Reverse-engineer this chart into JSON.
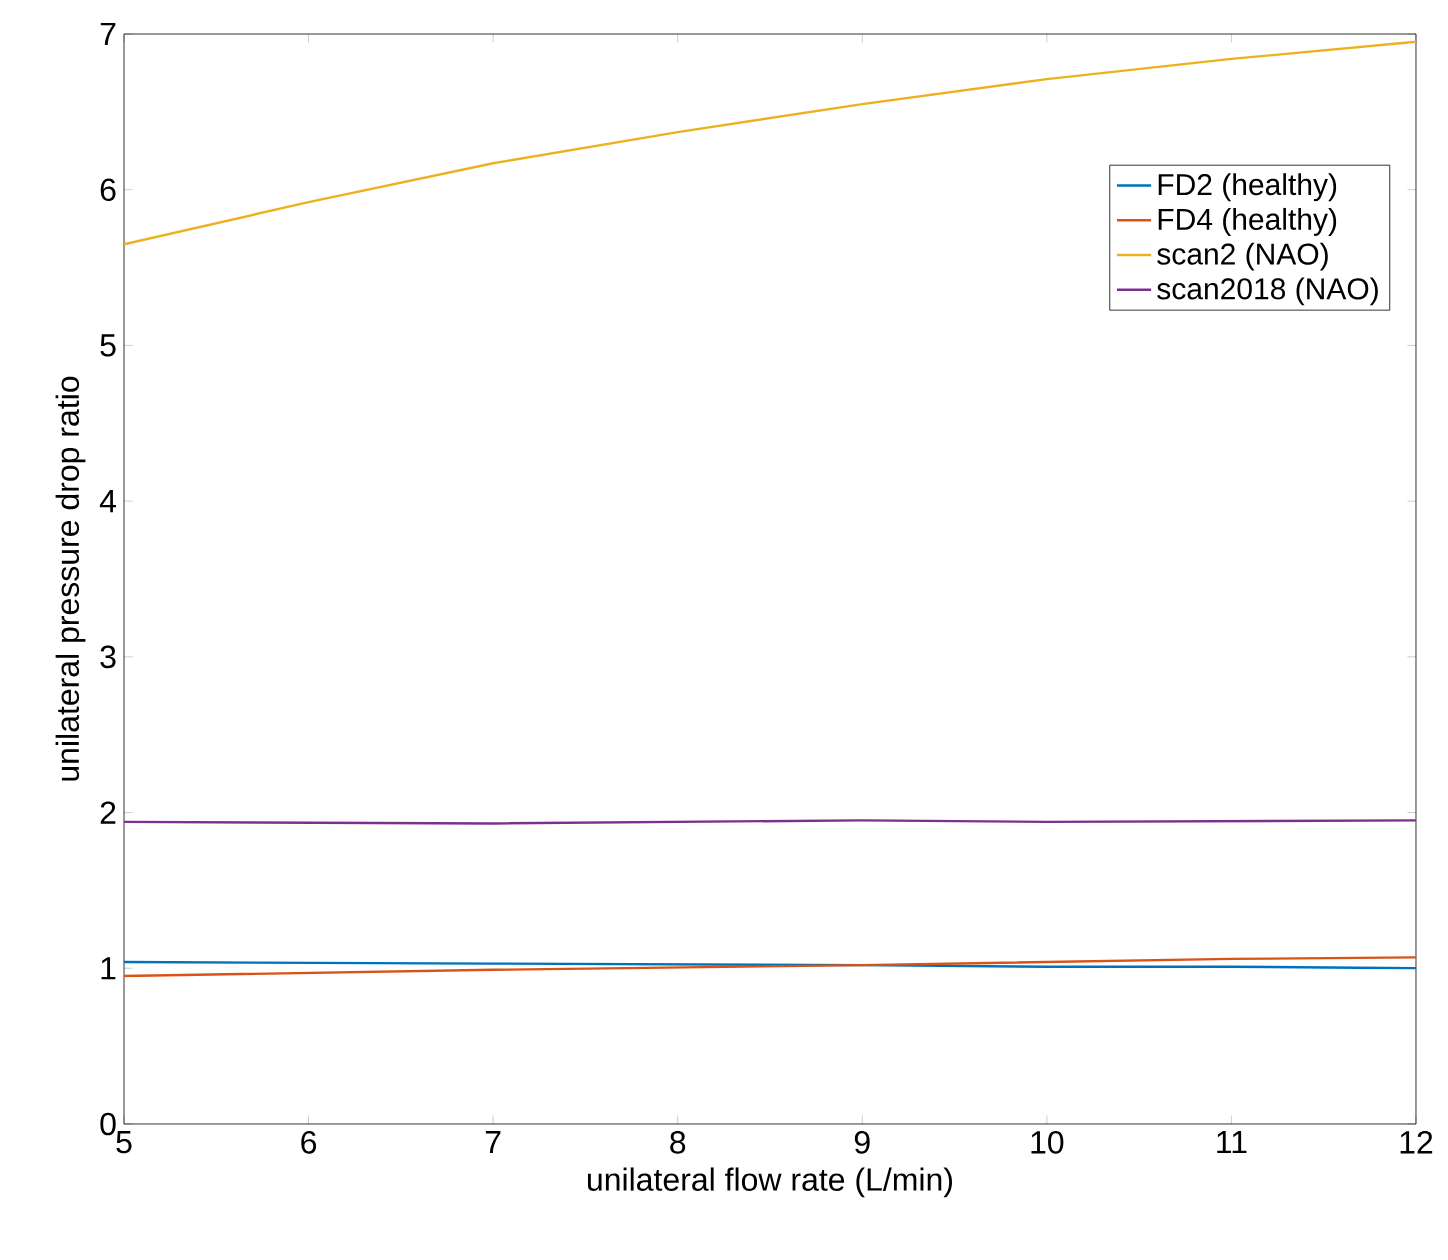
{
  "chart_data": {
    "type": "line",
    "xlabel": "unilateral flow rate (L/min)",
    "ylabel": "unilateral pressure drop ratio",
    "xlim": [
      5,
      12
    ],
    "ylim": [
      0,
      7
    ],
    "xticks": [
      5,
      6,
      7,
      8,
      9,
      10,
      11,
      12
    ],
    "yticks": [
      0,
      1,
      2,
      3,
      4,
      5,
      6,
      7
    ],
    "legend": "top right",
    "grid": false,
    "marker": "none",
    "series": [
      {
        "name": "FD2 (healthy)",
        "color": "#0072bd",
        "x": [
          5,
          7,
          9,
          10,
          11,
          12
        ],
        "values": [
          1.04,
          1.03,
          1.02,
          1.01,
          1.01,
          1.0
        ]
      },
      {
        "name": "FD4 (healthy)",
        "color": "#d95319",
        "x": [
          5,
          7,
          9,
          10,
          11,
          12
        ],
        "values": [
          0.95,
          0.99,
          1.02,
          1.04,
          1.06,
          1.07
        ]
      },
      {
        "name": "scan2 (NAO)",
        "color": "#edb120",
        "x": [
          5,
          6,
          7,
          8,
          9,
          10,
          11,
          12
        ],
        "values": [
          5.65,
          5.92,
          6.17,
          6.37,
          6.55,
          6.71,
          6.84,
          6.95
        ]
      },
      {
        "name": "scan2018 (NAO)",
        "color": "#7e2f8e",
        "x": [
          5,
          7,
          9,
          10,
          12
        ],
        "values": [
          1.94,
          1.93,
          1.95,
          1.94,
          1.95
        ]
      }
    ]
  }
}
